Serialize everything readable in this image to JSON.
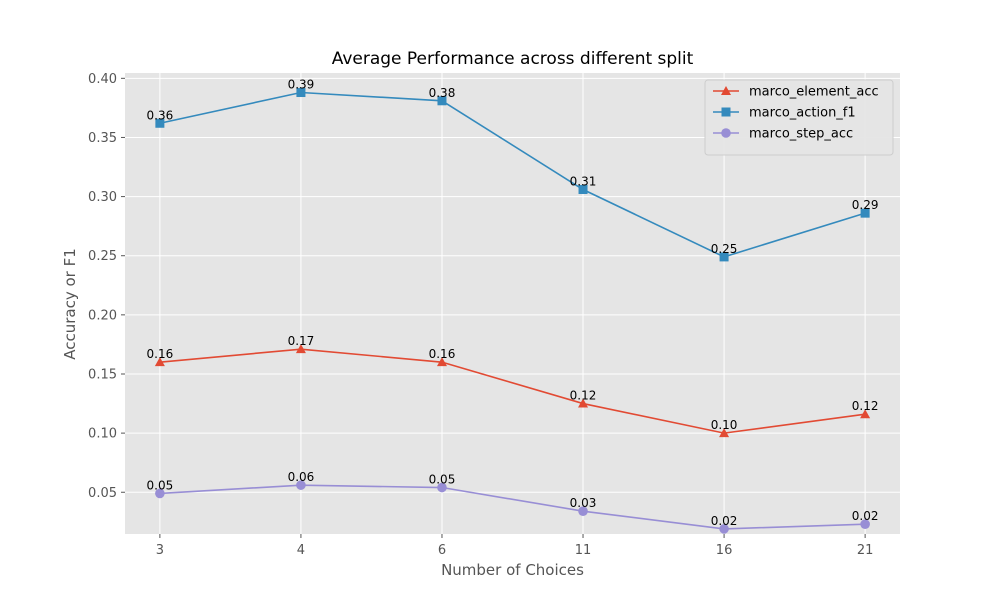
{
  "chart_data": {
    "type": "line",
    "title": "Average Performance across different split",
    "xlabel": "Number of Choices",
    "ylabel": "Accuracy or F1",
    "categories": [
      "3",
      "4",
      "6",
      "11",
      "16",
      "21"
    ],
    "ylim": [
      0.0147,
      0.4045
    ],
    "yticks": [
      0.05,
      0.1,
      0.15,
      0.2,
      0.25,
      0.3,
      0.35,
      0.4
    ],
    "ytick_labels": [
      "0.05",
      "0.10",
      "0.15",
      "0.20",
      "0.25",
      "0.30",
      "0.35",
      "0.40"
    ],
    "grid": true,
    "background": "#e5e5e5",
    "legend_position": "top-right",
    "series": [
      {
        "name": "marco_element_acc",
        "color": "#e24a33",
        "marker": "triangle",
        "values": [
          0.16,
          0.171,
          0.16,
          0.125,
          0.1,
          0.116
        ],
        "labels": [
          "0.16",
          "0.17",
          "0.16",
          "0.12",
          "0.10",
          "0.12"
        ]
      },
      {
        "name": "marco_action_f1",
        "color": "#348abd",
        "marker": "square",
        "values": [
          0.362,
          0.388,
          0.381,
          0.306,
          0.249,
          0.286
        ],
        "labels": [
          "0.36",
          "0.39",
          "0.38",
          "0.31",
          "0.25",
          "0.29"
        ]
      },
      {
        "name": "marco_step_acc",
        "color": "#988ed5",
        "marker": "circle",
        "values": [
          0.049,
          0.056,
          0.054,
          0.034,
          0.019,
          0.023
        ],
        "labels": [
          "0.05",
          "0.06",
          "0.05",
          "0.03",
          "0.02",
          "0.02"
        ]
      }
    ]
  }
}
